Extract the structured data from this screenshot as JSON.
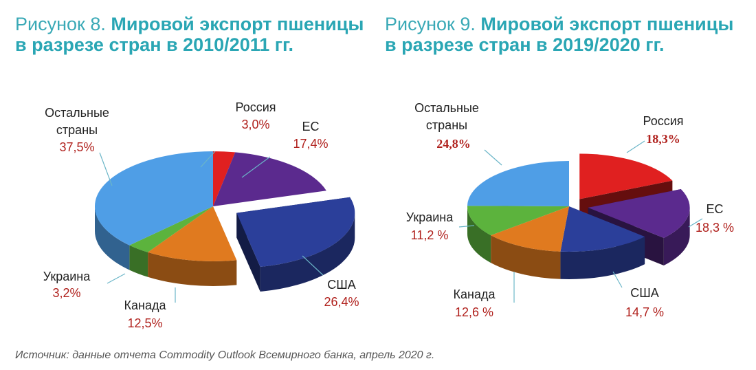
{
  "charts": [
    {
      "title_label": "Рисунок 8.",
      "title_text_line1": "Мировой экспорт пшеницы",
      "title_text_line2": "в разрезе стран в 2010/2011 гг."
    },
    {
      "title_label": "Рисунок 9.",
      "title_text_line1": "Мировой экспорт пшеницы",
      "title_text_line2": "в разрезе стран в 2019/2020 гг."
    }
  ],
  "source": "Источник: данные отчета Commodity Outlook Всемирного банка, апрель 2020 г.",
  "chart_data": [
    {
      "type": "pie",
      "title": "Рисунок 8. Мировой экспорт пшеницы в разрезе стран в 2010/2011 гг.",
      "slices": [
        {
          "name": "Россия",
          "value": 3.0,
          "label": "3,0%",
          "color": "#e02020"
        },
        {
          "name": "ЕС",
          "value": 17.4,
          "label": "17,4%",
          "color": "#5b2a8e"
        },
        {
          "name": "США",
          "value": 26.4,
          "label": "26,4%",
          "color": "#2b3f9a",
          "exploded": true
        },
        {
          "name": "Канада",
          "value": 12.5,
          "label": "12,5%",
          "color": "#e07a1f"
        },
        {
          "name": "Украина",
          "value": 3.2,
          "label": "3,2%",
          "color": "#5cb33d"
        },
        {
          "name": "Остальные\nстраны",
          "value": 37.5,
          "label": "37,5%",
          "color": "#4f9ee6"
        }
      ]
    },
    {
      "type": "pie",
      "title": "Рисунок 9. Мировой экспорт пшеницы в разрезе стран в 2019/2020 гг.",
      "slices": [
        {
          "name": "Россия",
          "value": 18.3,
          "label": "18,3%",
          "color": "#e02020",
          "exploded": true
        },
        {
          "name": "ЕС",
          "value": 18.3,
          "label": "18,3 %",
          "color": "#5b2a8e",
          "exploded": true
        },
        {
          "name": "США",
          "value": 14.7,
          "label": "14,7 %",
          "color": "#2b3f9a"
        },
        {
          "name": "Канада",
          "value": 12.6,
          "label": "12,6 %",
          "color": "#e07a1f"
        },
        {
          "name": "Украина",
          "value": 11.2,
          "label": "11,2 %",
          "color": "#5cb33d"
        },
        {
          "name": "Остальные\nстраны",
          "value": 24.8,
          "label": "24,8%",
          "color": "#4f9ee6"
        }
      ]
    }
  ]
}
